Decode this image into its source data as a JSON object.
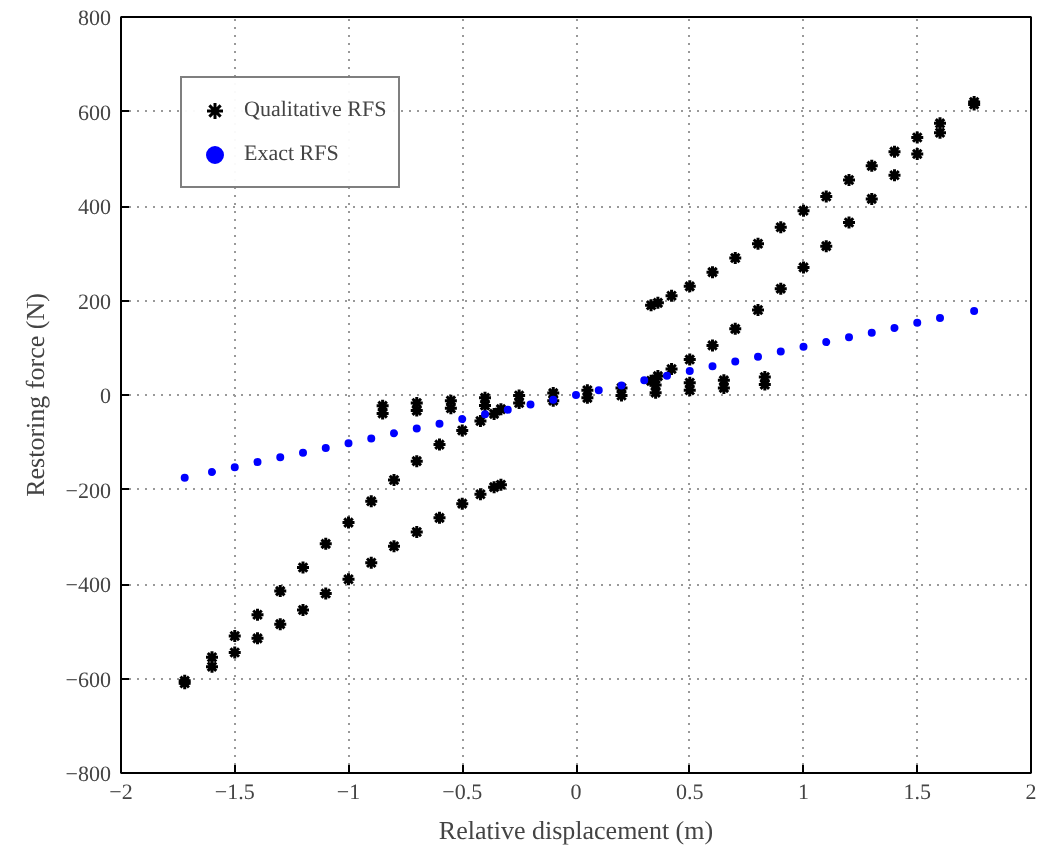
{
  "chart_data": {
    "type": "scatter",
    "xlabel": "Relative displacement (m)",
    "ylabel": "Restoring force (N)",
    "xlim": [
      -2,
      2
    ],
    "ylim": [
      -800,
      800
    ],
    "xticks": [
      {
        "value": -2,
        "label": "−2"
      },
      {
        "value": -1.5,
        "label": "−1.5"
      },
      {
        "value": -1,
        "label": "−1"
      },
      {
        "value": -0.5,
        "label": "−0.5"
      },
      0,
      0.5,
      1,
      1.5,
      2
    ],
    "yticks": [
      {
        "value": -800,
        "label": "−800"
      },
      {
        "value": -600,
        "label": "−600"
      },
      {
        "value": -400,
        "label": "−400"
      },
      {
        "value": -200,
        "label": "−200"
      },
      0,
      200,
      400,
      600,
      800
    ],
    "grid": true,
    "legend": "top left",
    "series": [
      {
        "name": "Qualitative RFS",
        "color": "#000000",
        "marker": "cross",
        "x": [
          -1.72,
          -1.6,
          -1.5,
          -1.4,
          -1.3,
          -1.2,
          -1.1,
          -1.0,
          -0.9,
          -0.8,
          -0.7,
          -0.6,
          -0.5,
          -0.42,
          -0.36,
          -0.33,
          -1.72,
          -1.6,
          -1.5,
          -1.4,
          -1.3,
          -1.2,
          -1.1,
          -1.0,
          -0.9,
          -0.8,
          -0.7,
          -0.6,
          -0.5,
          -0.42,
          -0.36,
          -0.33,
          1.75,
          1.6,
          1.5,
          1.4,
          1.3,
          1.2,
          1.1,
          1.0,
          0.9,
          0.8,
          0.7,
          0.6,
          0.5,
          0.42,
          0.36,
          0.33,
          1.75,
          1.6,
          1.5,
          1.4,
          1.3,
          1.2,
          1.1,
          1.0,
          0.9,
          0.8,
          0.7,
          0.6,
          0.5,
          0.42,
          0.36,
          0.33,
          -0.85,
          -0.7,
          -0.55,
          -0.4,
          -0.25,
          -0.1,
          0.05,
          0.2,
          0.35,
          0.5,
          0.65,
          0.83,
          -0.85,
          -0.7,
          -0.55,
          -0.4,
          -0.25,
          -0.1,
          0.05,
          0.2,
          0.35,
          0.5,
          0.65,
          0.83
        ],
        "values": [
          -605,
          -555,
          -510,
          -465,
          -415,
          -365,
          -315,
          -270,
          -225,
          -180,
          -140,
          -105,
          -75,
          -55,
          -40,
          -30,
          -610,
          -575,
          -545,
          -515,
          -485,
          -455,
          -420,
          -390,
          -355,
          -320,
          -290,
          -260,
          -230,
          -210,
          -195,
          -190,
          615,
          555,
          510,
          465,
          415,
          365,
          315,
          270,
          225,
          180,
          140,
          105,
          75,
          55,
          40,
          30,
          620,
          575,
          545,
          515,
          485,
          455,
          420,
          390,
          355,
          320,
          290,
          260,
          230,
          210,
          195,
          190,
          -23,
          -17,
          -12,
          -6,
          -1,
          4,
          10,
          15,
          21,
          26,
          31,
          38,
          -39,
          -33,
          -28,
          -22,
          -17,
          -12,
          -6,
          -1,
          5,
          10,
          15,
          22
        ]
      },
      {
        "name": "Exact RFS",
        "color": "#0000ff",
        "marker": "circle",
        "x": [
          -1.72,
          -1.6,
          -1.5,
          -1.4,
          -1.3,
          -1.2,
          -1.1,
          -1.0,
          -0.9,
          -0.8,
          -0.7,
          -0.6,
          -0.5,
          -0.4,
          -0.3,
          -0.2,
          -0.1,
          0,
          0.1,
          0.2,
          0.3,
          0.4,
          0.5,
          0.6,
          0.7,
          0.8,
          0.9,
          1.0,
          1.1,
          1.2,
          1.3,
          1.4,
          1.5,
          1.6,
          1.75
        ],
        "values": [
          -175,
          -163,
          -153,
          -142,
          -132,
          -122,
          -112,
          -102,
          -92,
          -81,
          -71,
          -61,
          -51,
          -41,
          -31,
          -20,
          -10,
          0,
          10,
          20,
          31,
          41,
          51,
          61,
          71,
          81,
          92,
          102,
          112,
          122,
          132,
          142,
          153,
          163,
          178
        ]
      }
    ]
  }
}
